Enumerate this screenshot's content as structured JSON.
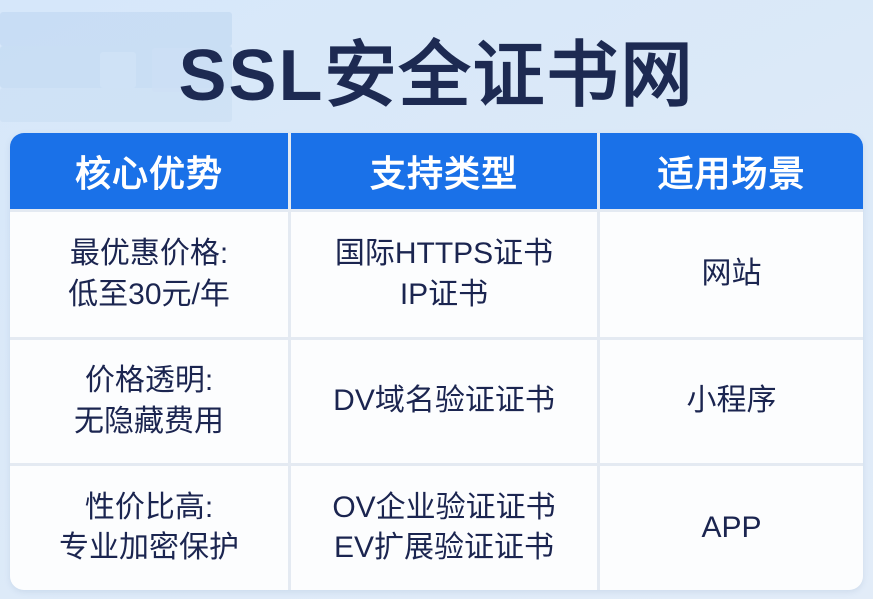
{
  "title": "SSL安全证书网",
  "colors": {
    "header_bg": "#1a71e8",
    "header_text": "#ffffff",
    "cell_bg": "#fcfdfe",
    "cell_text": "#1b2550",
    "title_text": "#1d2a52",
    "page_bg": "#dbe9f8",
    "divider": "#e4eaf2"
  },
  "table": {
    "headers": [
      "核心优势",
      "支持类型",
      "适用场景"
    ],
    "rows": [
      {
        "adv1": "最优惠价格:",
        "adv2": "低至30元/年",
        "type1": "国际HTTPS证书",
        "type2": "IP证书",
        "scenario": "网站"
      },
      {
        "adv1": "价格透明:",
        "adv2": "无隐藏费用",
        "type1": "DV域名验证证书",
        "scenario": "小程序"
      },
      {
        "adv1": "性价比高:",
        "adv2": "专业加密保护",
        "type1": "OV企业验证证书",
        "type2": "EV扩展验证证书",
        "scenario": "APP"
      }
    ]
  }
}
